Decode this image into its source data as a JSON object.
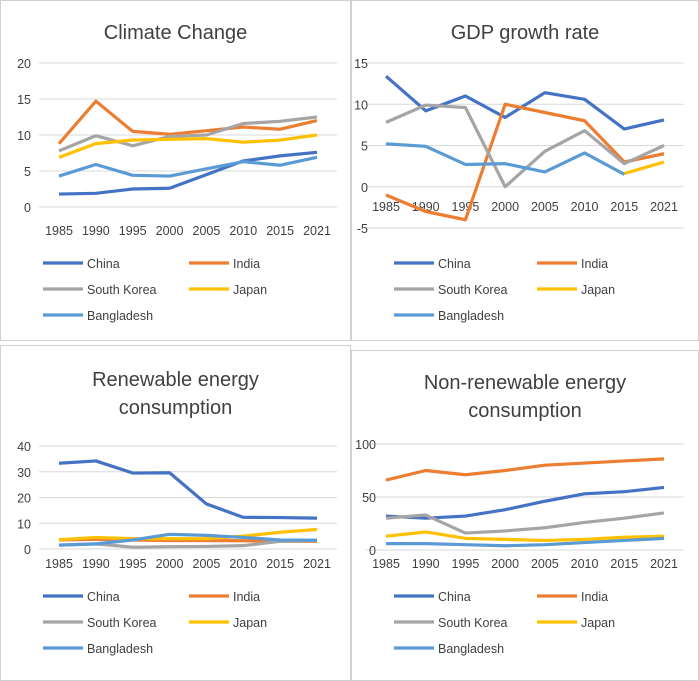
{
  "chart_data": [
    {
      "type": "line",
      "title": [
        "Climate Change"
      ],
      "categories": [
        "1985",
        "1990",
        "1995",
        "2000",
        "2005",
        "2010",
        "2015",
        "2021"
      ],
      "ylim": [
        0,
        20
      ],
      "yticks": [
        0,
        5,
        10,
        15,
        20
      ],
      "grid": true,
      "legend": "bottom",
      "series": [
        {
          "name": "China",
          "color": "#4472C4",
          "values": [
            1.8,
            1.9,
            2.5,
            2.6,
            4.5,
            6.4,
            7.1,
            7.6
          ]
        },
        {
          "name": "India",
          "color": "#ED7D31",
          "values": [
            8.8,
            14.7,
            10.5,
            10.1,
            10.6,
            11.1,
            10.8,
            12.0
          ]
        },
        {
          "name": "South Korea",
          "color": "#A5A5A5",
          "values": [
            7.8,
            9.9,
            8.5,
            9.8,
            10.0,
            11.6,
            11.9,
            12.5
          ]
        },
        {
          "name": "Japan",
          "color": "#FFC000",
          "values": [
            6.9,
            8.8,
            9.3,
            9.4,
            9.5,
            9.0,
            9.3,
            10.0
          ]
        },
        {
          "name": "Bangladesh",
          "color": "#5B9BD5",
          "values": [
            4.3,
            5.9,
            4.4,
            4.3,
            5.3,
            6.3,
            5.8,
            6.9
          ]
        }
      ]
    },
    {
      "type": "line",
      "title": [
        "GDP growth rate"
      ],
      "categories": [
        "1985",
        "1990",
        "1995",
        "2000",
        "2005",
        "2010",
        "2015",
        "2021"
      ],
      "ylim": [
        -5,
        15
      ],
      "yticks": [
        -5,
        0,
        5,
        10,
        15
      ],
      "grid": true,
      "legend": "bottom",
      "series": [
        {
          "name": "China",
          "color": "#4472C4",
          "values": [
            13.4,
            9.2,
            11.0,
            8.4,
            11.4,
            10.6,
            7.0,
            8.1
          ]
        },
        {
          "name": "India",
          "color": "#ED7D31",
          "values": [
            -1,
            -3,
            -4,
            10,
            9,
            8,
            3,
            4
          ]
        },
        {
          "name": "South Korea",
          "color": "#A5A5A5",
          "values": [
            7.8,
            9.9,
            9.6,
            0.0,
            4.3,
            6.8,
            2.8,
            5.0
          ]
        },
        {
          "name": "Japan",
          "color": "#FFC000",
          "values": [
            null,
            null,
            null,
            null,
            null,
            null,
            1.6,
            3.0
          ]
        },
        {
          "name": "Bangladesh",
          "color": "#5B9BD5",
          "values": [
            5.2,
            4.9,
            2.7,
            2.8,
            1.8,
            4.1,
            1.5,
            null
          ]
        }
      ]
    },
    {
      "type": "line",
      "title": [
        "Renewable energy",
        "consumption"
      ],
      "categories": [
        "1985",
        "1990",
        "1995",
        "2000",
        "2005",
        "2010",
        "2015",
        "2021"
      ],
      "ylim": [
        0,
        40
      ],
      "yticks": [
        0,
        10,
        20,
        30,
        40
      ],
      "grid": true,
      "legend": "bottom",
      "series": [
        {
          "name": "China",
          "color": "#4472C4",
          "values": [
            33.3,
            34.2,
            29.5,
            29.6,
            17.5,
            12.3,
            12.2,
            12.0
          ]
        },
        {
          "name": "India",
          "color": "#ED7D31",
          "values": [
            3.5,
            3.8,
            3.5,
            3.3,
            3.3,
            3.2,
            3.0,
            3.0
          ]
        },
        {
          "name": "South Korea",
          "color": "#A5A5A5",
          "values": [
            1.5,
            2.0,
            0.7,
            0.9,
            1.0,
            1.3,
            3.0,
            3.3
          ]
        },
        {
          "name": "Japan",
          "color": "#FFC000",
          "values": [
            3.6,
            4.5,
            4.0,
            4.0,
            4.0,
            5.0,
            6.5,
            7.6
          ]
        },
        {
          "name": "Bangladesh",
          "color": "#5B9BD5",
          "values": [
            1.5,
            2.0,
            3.5,
            5.7,
            5.3,
            4.5,
            3.5,
            3.4
          ]
        }
      ]
    },
    {
      "type": "line",
      "title": [
        "Non-renewable energy",
        "consumption"
      ],
      "categories": [
        "1985",
        "1990",
        "1995",
        "2000",
        "2005",
        "2010",
        "2015",
        "2021"
      ],
      "ylim": [
        0,
        100
      ],
      "yticks": [
        0,
        50,
        100
      ],
      "grid": true,
      "legend": "bottom",
      "series": [
        {
          "name": "China",
          "color": "#4472C4",
          "values": [
            32,
            30,
            32,
            38,
            46,
            53,
            55,
            59
          ]
        },
        {
          "name": "India",
          "color": "#ED7D31",
          "values": [
            66,
            75,
            71,
            75,
            80,
            82,
            84,
            86
          ]
        },
        {
          "name": "South Korea",
          "color": "#A5A5A5",
          "values": [
            30,
            33,
            16,
            18,
            21,
            26,
            30,
            35
          ]
        },
        {
          "name": "Japan",
          "color": "#FFC000",
          "values": [
            13,
            17,
            11,
            10,
            9,
            10,
            12,
            13
          ]
        },
        {
          "name": "Bangladesh",
          "color": "#5B9BD5",
          "values": [
            6,
            6,
            5,
            4,
            5,
            7,
            9,
            11
          ]
        }
      ]
    }
  ]
}
